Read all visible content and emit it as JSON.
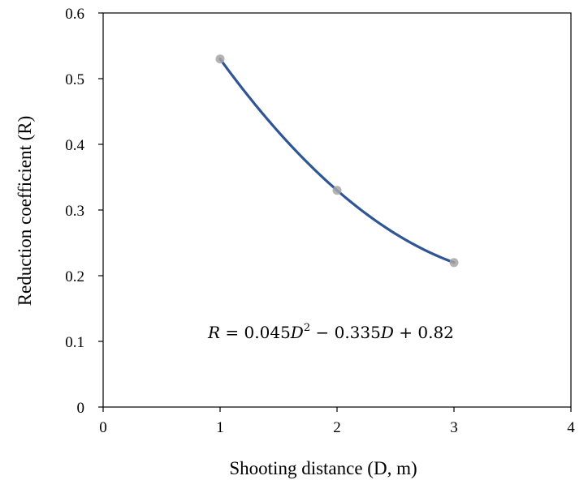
{
  "chart_data": {
    "type": "scatter",
    "title": "",
    "xlabel": "Shooting distance (D, m)",
    "ylabel": "Reduction coefficient (R)",
    "xlim": [
      0,
      4
    ],
    "ylim": [
      0,
      0.6
    ],
    "x_ticks": [
      "0",
      "1",
      "2",
      "3",
      "4"
    ],
    "y_ticks": [
      "0",
      "0.1",
      "0.2",
      "0.3",
      "0.4",
      "0.5",
      "0.6"
    ],
    "grid": false,
    "legend": "none",
    "series": [
      {
        "x": [
          1,
          2,
          3
        ],
        "y": [
          0.53,
          0.33,
          0.22
        ],
        "marker_color": "#a6a6a6"
      }
    ],
    "trendline": {
      "type": "polynomial",
      "order": 2,
      "coefficients": [
        0.045,
        -0.335,
        0.82
      ],
      "x_range": [
        1,
        3
      ],
      "color": "#2f5597",
      "equation_text": {
        "lhs": "R",
        "mid": " = 0.045",
        "var": "D",
        "exp": "2",
        "tail1": " − 0.335",
        "var2": "D",
        "tail2": " + 0.82"
      }
    }
  }
}
